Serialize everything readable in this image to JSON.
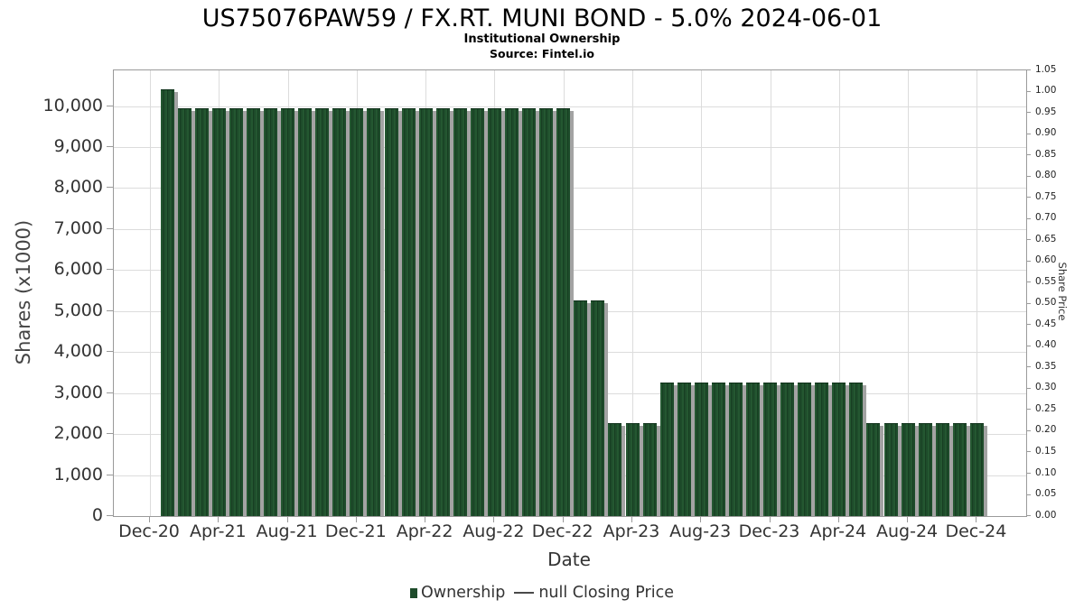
{
  "header": {
    "title": "US75076PAW59 / FX.RT. MUNI BOND - 5.0% 2024-06-01",
    "subtitle": "Institutional Ownership",
    "source": "Source: Fintel.io"
  },
  "chart_data": {
    "type": "bar",
    "title": "US75076PAW59 / FX.RT. MUNI BOND - 5.0% 2024-06-01",
    "subtitle": "Institutional Ownership",
    "source": "Source: Fintel.io",
    "xlabel": "Date",
    "ylabel_left": "Shares (x1000)",
    "ylabel_right": "Share Price",
    "grid": true,
    "legend_position": "bottom",
    "bar_color": "#1e4c2b",
    "shadow_color": "#a3a3a3",
    "gridline_color": "#dcdcdc",
    "ylim_left": [
      0,
      10870
    ],
    "ylim_right": [
      0,
      1.05
    ],
    "y_ticks_left": {
      "values": [
        0,
        1000,
        2000,
        3000,
        4000,
        5000,
        6000,
        7000,
        8000,
        9000,
        10000
      ],
      "labels": [
        "0",
        "1,000",
        "2,000",
        "3,000",
        "4,000",
        "5,000",
        "6,000",
        "7,000",
        "8,000",
        "9,000",
        "10,000"
      ]
    },
    "y_ticks_right": {
      "values": [
        0,
        0.05,
        0.1,
        0.15,
        0.2,
        0.25,
        0.3,
        0.35,
        0.4,
        0.45,
        0.5,
        0.55,
        0.6,
        0.65,
        0.7,
        0.75,
        0.8,
        0.85,
        0.9,
        0.95,
        1.0,
        1.05
      ],
      "labels": [
        "0.00",
        "0.05",
        "0.10",
        "0.15",
        "0.20",
        "0.25",
        "0.30",
        "0.35",
        "0.40",
        "0.45",
        "0.50",
        "0.55",
        "0.60",
        "0.65",
        "0.70",
        "0.75",
        "0.80",
        "0.85",
        "0.90",
        "0.95",
        "1.00",
        "1.05"
      ]
    },
    "x_tick_labels": [
      "Dec-20",
      "Apr-21",
      "Aug-21",
      "Dec-21",
      "Apr-22",
      "Aug-22",
      "Dec-22",
      "Apr-23",
      "Aug-23",
      "Dec-23",
      "Apr-24",
      "Aug-24",
      "Dec-24"
    ],
    "legend": [
      {
        "label": "Ownership",
        "marker": "square",
        "color": "#1e4c2b"
      },
      {
        "label": "null Closing Price",
        "marker": "line",
        "color": "#4a4a4a"
      }
    ],
    "series": [
      {
        "name": "Ownership",
        "type": "bar",
        "color": "#1e4c2b",
        "x": [
          "Jan-21",
          "Feb-21",
          "Mar-21",
          "Apr-21",
          "May-21",
          "Jun-21",
          "Jul-21",
          "Aug-21",
          "Sep-21",
          "Oct-21",
          "Nov-21",
          "Dec-21",
          "Jan-22",
          "Feb-22",
          "Mar-22",
          "Apr-22",
          "May-22",
          "Jun-22",
          "Jul-22",
          "Aug-22",
          "Sep-22",
          "Oct-22",
          "Nov-22",
          "Dec-22",
          "Jan-23",
          "Feb-23",
          "Mar-23",
          "Apr-23",
          "May-23",
          "Jun-23",
          "Jul-23",
          "Aug-23",
          "Sep-23",
          "Oct-23",
          "Nov-23",
          "Dec-23",
          "Jan-24",
          "Feb-24",
          "Mar-24",
          "Apr-24",
          "May-24",
          "Jun-24",
          "Jul-24",
          "Aug-24",
          "Sep-24",
          "Oct-24",
          "Nov-24",
          "Dec-24"
        ],
        "values": [
          10400,
          9950,
          9950,
          9950,
          9950,
          9950,
          9950,
          9950,
          9950,
          9950,
          9950,
          9950,
          9950,
          9950,
          9950,
          9950,
          9950,
          9950,
          9950,
          9950,
          9950,
          9950,
          9950,
          9950,
          5270,
          5270,
          2260,
          2260,
          2260,
          3260,
          3260,
          3260,
          3260,
          3260,
          3260,
          3260,
          3260,
          3260,
          3260,
          3260,
          3260,
          2260,
          2260,
          2260,
          2260,
          2260,
          2260,
          2260
        ]
      },
      {
        "name": "null Closing Price",
        "type": "line",
        "color": "#4a4a4a",
        "values": []
      }
    ]
  }
}
